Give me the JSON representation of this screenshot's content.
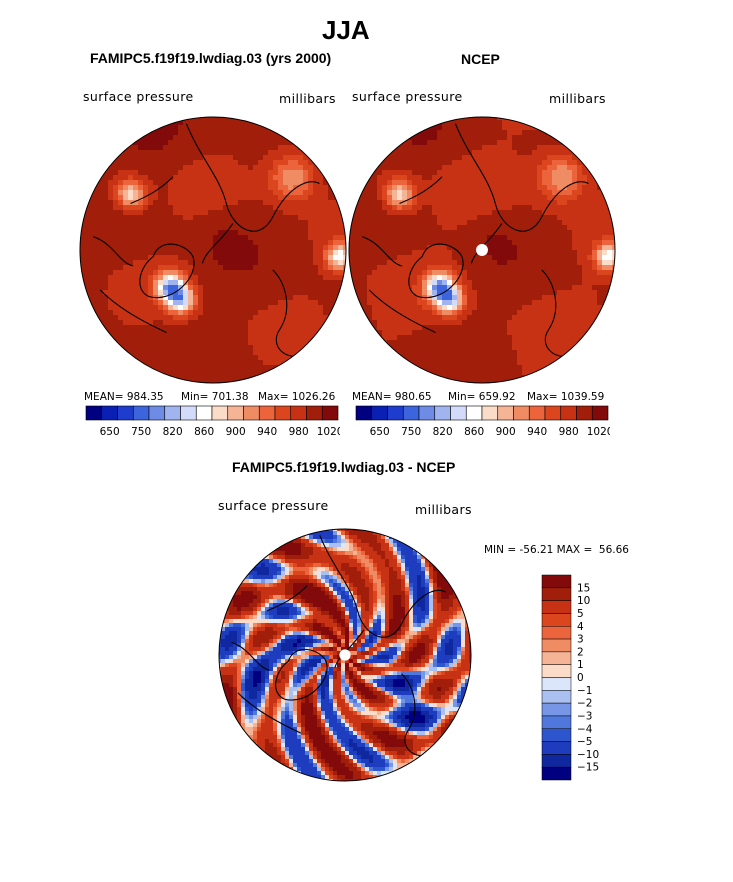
{
  "figure": {
    "title": "JJA",
    "left_panel_title": "FAMIPC5.f19f19.lwdiag.03 (yrs 2000)",
    "right_panel_title": "NCEP",
    "diff_panel_title": "FAMIPC5.f19f19.lwdiag.03 - NCEP"
  },
  "chart_data": [
    {
      "type": "heatmap",
      "projection": "polar-stereographic-north",
      "title": "FAMIPC5.f19f19.lwdiag.03 (yrs 2000)",
      "variable": "surface pressure",
      "units": "millibars",
      "stats": {
        "mean_text": "MEAN= 984.35",
        "min_text": "Min= 701.38",
        "max_text": "Max= 1026.26",
        "mean": 984.35,
        "min": 701.38,
        "max": 1026.26
      },
      "colorbar": {
        "tick_labels": [
          "650",
          "750",
          "820",
          "860",
          "900",
          "940",
          "980",
          "1020"
        ],
        "levels": [
          650,
          700,
          750,
          800,
          820,
          840,
          860,
          880,
          900,
          920,
          940,
          960,
          980,
          1000,
          1020
        ],
        "colors": [
          "#000080",
          "#0a1fb4",
          "#1e3ccd",
          "#3c64dc",
          "#6e8ce6",
          "#a0b4f0",
          "#d2dcfa",
          "#ffffff",
          "#fadcc8",
          "#f5b496",
          "#f08c64",
          "#eb643c",
          "#dc461e",
          "#c83214",
          "#a01e0a",
          "#820a0a"
        ]
      }
    },
    {
      "type": "heatmap",
      "projection": "polar-stereographic-north",
      "title": "NCEP",
      "variable": "surface pressure",
      "units": "millibars",
      "stats": {
        "mean_text": "MEAN= 980.65",
        "min_text": "Min= 659.92",
        "max_text": "Max= 1039.59",
        "mean": 980.65,
        "min": 659.92,
        "max": 1039.59
      },
      "colorbar": {
        "tick_labels": [
          "650",
          "750",
          "820",
          "860",
          "900",
          "940",
          "980",
          "1020"
        ],
        "levels": [
          650,
          700,
          750,
          800,
          820,
          840,
          860,
          880,
          900,
          920,
          940,
          960,
          980,
          1000,
          1020
        ],
        "colors": [
          "#000080",
          "#0a1fb4",
          "#1e3ccd",
          "#3c64dc",
          "#6e8ce6",
          "#a0b4f0",
          "#d2dcfa",
          "#ffffff",
          "#fadcc8",
          "#f5b496",
          "#f08c64",
          "#eb643c",
          "#dc461e",
          "#c83214",
          "#a01e0a",
          "#820a0a"
        ]
      }
    },
    {
      "type": "heatmap",
      "projection": "polar-stereographic-north",
      "title": "FAMIPC5.f19f19.lwdiag.03 - NCEP",
      "variable": "surface pressure",
      "units": "millibars",
      "stats": {
        "text": "MIN = -56.21 MAX =  56.66",
        "min": -56.21,
        "max": 56.66
      },
      "colorbar": {
        "orientation": "vertical",
        "tick_labels": [
          "15",
          "10",
          "5",
          "4",
          "3",
          "2",
          "1",
          "0",
          "−1",
          "−2",
          "−3",
          "−4",
          "−5",
          "−10",
          "−15"
        ],
        "levels": [
          15,
          10,
          5,
          4,
          3,
          2,
          1,
          0,
          -1,
          -2,
          -3,
          -4,
          -5,
          -10,
          -15
        ],
        "colors": [
          "#820a0a",
          "#a01e0a",
          "#c83214",
          "#dc461e",
          "#eb643c",
          "#f08c64",
          "#f5b496",
          "#fadcc8",
          "#dce6fa",
          "#aac0f0",
          "#7896e6",
          "#5078dc",
          "#2d55cd",
          "#1e3cbe",
          "#0f28a0",
          "#000080"
        ]
      }
    }
  ]
}
